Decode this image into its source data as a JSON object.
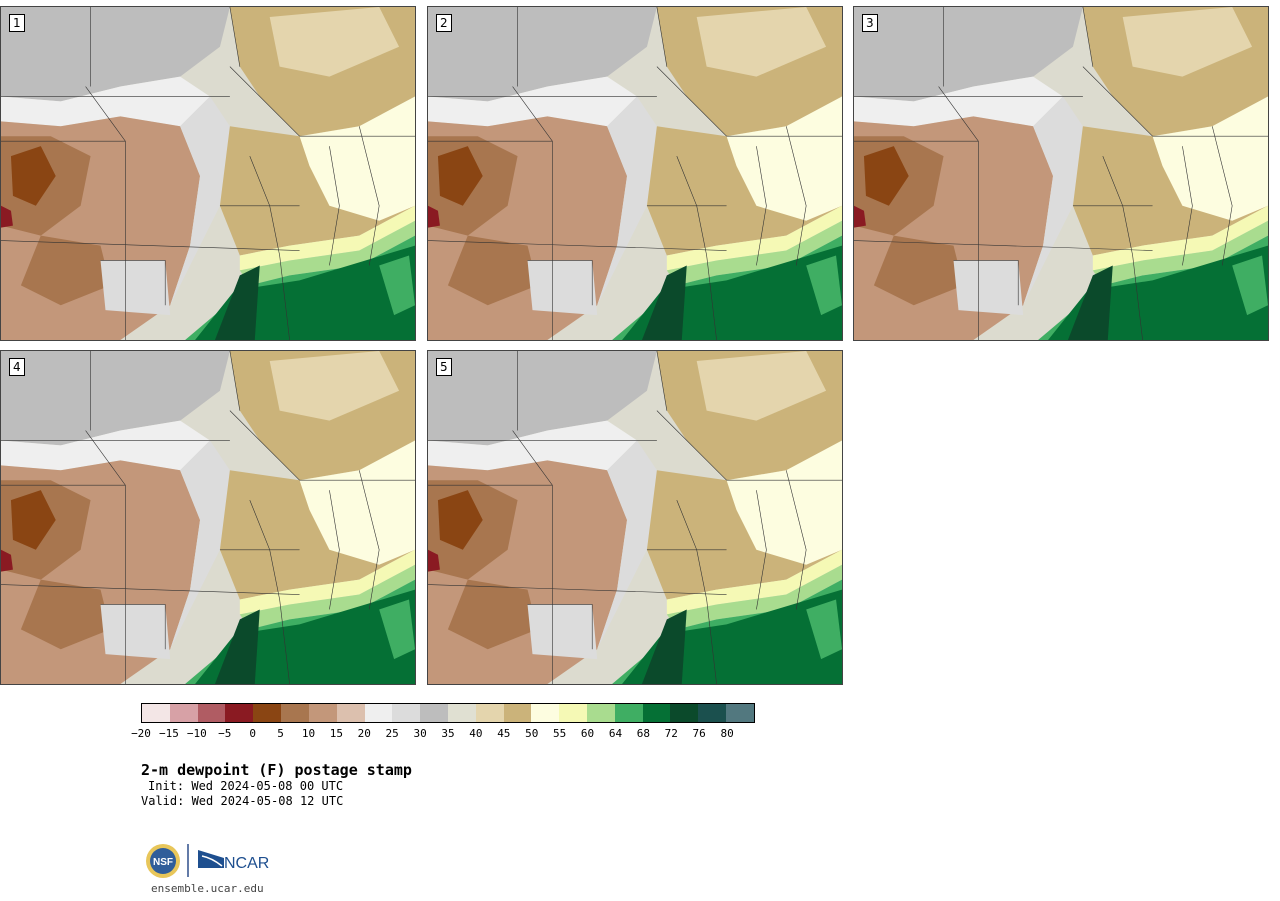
{
  "panels": [
    {
      "label": "1"
    },
    {
      "label": "2"
    },
    {
      "label": "3"
    },
    {
      "label": "4"
    },
    {
      "label": "5"
    }
  ],
  "colorbar": {
    "colors": [
      "#f3e6e6",
      "#d7a1a6",
      "#b05c63",
      "#8a1a22",
      "#8a4513",
      "#a8764f",
      "#c3977a",
      "#dcc0ae",
      "#efefef",
      "#dcdcdc",
      "#bdbdbd",
      "#e0e0d2",
      "#e4d5ad",
      "#cbb37a",
      "#fdfde0",
      "#f5f9b5",
      "#a9dc8f",
      "#3fae63",
      "#057035",
      "#0b4a2b",
      "#1b504e",
      "#52787f"
    ],
    "ticks": [
      "−20",
      "−15",
      "−10",
      "−5",
      "0",
      "5",
      "10",
      "15",
      "20",
      "25",
      "30",
      "35",
      "40",
      "45",
      "50",
      "55",
      "60",
      "64",
      "68",
      "72",
      "76",
      "80"
    ]
  },
  "title": "2-m dewpoint (F) postage stamp",
  "init": "Init: Wed 2024-05-08 00 UTC",
  "valid": "Valid: Wed 2024-05-08 12 UTC",
  "logos": {
    "nsf": "NSF",
    "ncar": "NCAR"
  },
  "url": "ensemble.ucar.edu"
}
